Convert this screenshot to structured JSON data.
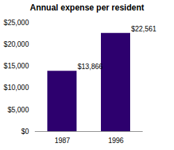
{
  "chart_data": {
    "type": "bar",
    "title": "Annual expense per resident",
    "categories": [
      "1987",
      "1996"
    ],
    "values": [
      13866,
      22561
    ],
    "value_labels": [
      "$13,866",
      "$22,561"
    ],
    "data_labels": true,
    "color": "#2d006e",
    "ylim": [
      0,
      25000
    ],
    "yticks": [
      {
        "value": 0,
        "label": "$0"
      },
      {
        "value": 5000,
        "label": "$5,000"
      },
      {
        "value": 10000,
        "label": "$10,000"
      },
      {
        "value": 15000,
        "label": "$15,000"
      },
      {
        "value": 20000,
        "label": "$20,000"
      },
      {
        "value": 25000,
        "label": "$25,000"
      }
    ],
    "grid": false
  }
}
